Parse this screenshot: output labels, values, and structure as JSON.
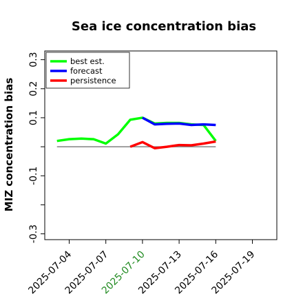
{
  "chart_data": {
    "type": "line",
    "title": "Sea ice concentration bias",
    "ylabel": "MIZ concentration bias",
    "xlabel": "",
    "xlim": [
      "2025-07-02",
      "2025-07-21"
    ],
    "ylim": [
      -0.32,
      0.33
    ],
    "yticks": [
      -0.3,
      -0.2,
      -0.1,
      0.0,
      0.1,
      0.2,
      0.3
    ],
    "ytick_labels": [
      "-0.3",
      "",
      "-0.1",
      "",
      "0.1",
      "0.2",
      "0.3"
    ],
    "xticks": [
      "2025-07-04",
      "2025-07-07",
      "2025-07-10",
      "2025-07-13",
      "2025-07-16",
      "2025-07-19"
    ],
    "xtick_labels": [
      "2025-07-04",
      "2025-07-07",
      "2025-07-10",
      "2025-07-13",
      "2025-07-16",
      "2025-07-19"
    ],
    "xtick_colors": [
      "#000000",
      "#000000",
      "#228B22",
      "#000000",
      "#000000",
      "#000000"
    ],
    "grid": false,
    "legend_position": "top-left",
    "zero_line": {
      "from": "2025-07-03",
      "to": "2025-07-16",
      "value": 0.0,
      "color": "#808080"
    },
    "series": [
      {
        "name": "best est.",
        "color": "#00ff00",
        "x": [
          "2025-07-03",
          "2025-07-04",
          "2025-07-05",
          "2025-07-06",
          "2025-07-07",
          "2025-07-08",
          "2025-07-09",
          "2025-07-10",
          "2025-07-11",
          "2025-07-12",
          "2025-07-13",
          "2025-07-14",
          "2025-07-15",
          "2025-07-16"
        ],
        "values": [
          0.02,
          0.026,
          0.028,
          0.026,
          0.011,
          0.043,
          0.093,
          0.1,
          0.08,
          0.082,
          0.082,
          0.077,
          0.075,
          0.02
        ]
      },
      {
        "name": "forecast",
        "color": "#0000ff",
        "x": [
          "2025-07-10",
          "2025-07-11",
          "2025-07-12",
          "2025-07-13",
          "2025-07-14",
          "2025-07-15",
          "2025-07-16"
        ],
        "values": [
          0.1,
          0.077,
          0.079,
          0.08,
          0.075,
          0.077,
          0.075
        ]
      },
      {
        "name": "persistence",
        "color": "#ff0000",
        "x": [
          "2025-07-09",
          "2025-07-10",
          "2025-07-11",
          "2025-07-12",
          "2025-07-13",
          "2025-07-14",
          "2025-07-15",
          "2025-07-16"
        ],
        "values": [
          0.0,
          0.016,
          -0.005,
          0.0,
          0.006,
          0.005,
          0.011,
          0.018
        ]
      }
    ]
  }
}
